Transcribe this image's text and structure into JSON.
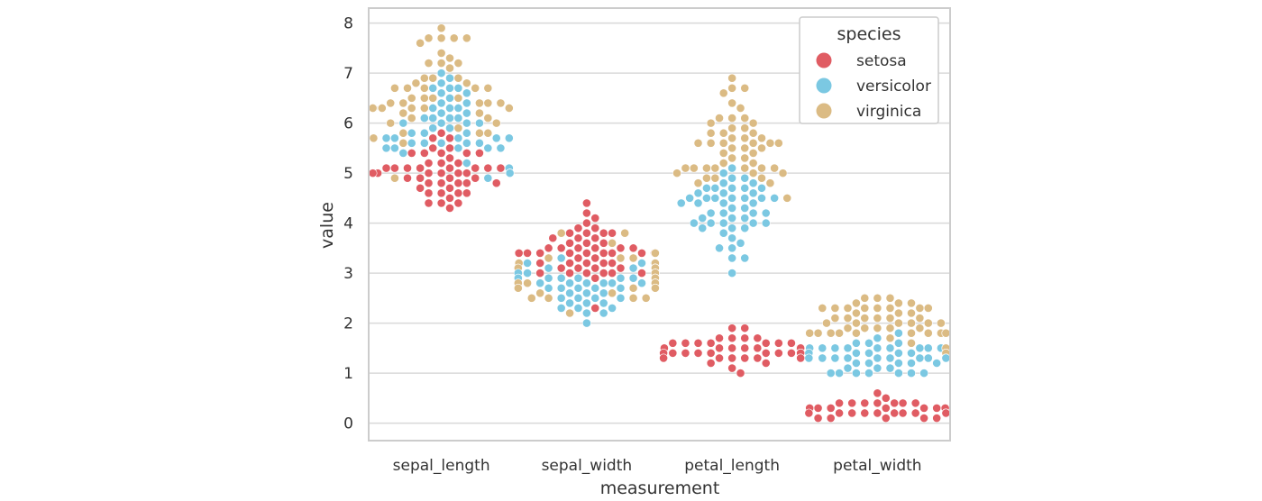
{
  "chart_data": {
    "type": "scatter",
    "subtype": "swarm",
    "xlabel": "measurement",
    "ylabel": "value",
    "categories": [
      "sepal_length",
      "sepal_width",
      "petal_length",
      "petal_width"
    ],
    "ylim": [
      -0.35,
      8.3
    ],
    "yticks": [
      "0",
      "1",
      "2",
      "3",
      "4",
      "5",
      "6",
      "7",
      "8"
    ],
    "grid": true,
    "legend": {
      "title": "species",
      "placement": "top-right",
      "entries": [
        "setosa",
        "versicolor",
        "virginica"
      ]
    },
    "colors": {
      "setosa": "#e05c63",
      "versicolor": "#7bc8e2",
      "virginica": "#dbbb84"
    },
    "grid_color": "#d9d9d9",
    "series": [
      {
        "name": "setosa",
        "values": [
          [
            5.1,
            4.9,
            4.7,
            4.6,
            5.0,
            5.4,
            4.6,
            5.0,
            4.4,
            4.9,
            5.4,
            4.8,
            4.8,
            4.3,
            5.8,
            5.7,
            5.4,
            5.1,
            5.7,
            5.1,
            5.4,
            5.1,
            4.6,
            5.1,
            4.8,
            5.0,
            5.0,
            5.2,
            5.2,
            4.7,
            4.8,
            5.4,
            5.2,
            5.5,
            4.9,
            5.0,
            5.5,
            4.9,
            4.4,
            5.1,
            5.0,
            4.5,
            4.4,
            5.0,
            5.1,
            4.8,
            5.1,
            4.6,
            5.3,
            5.0
          ],
          [
            3.5,
            3.0,
            3.2,
            3.1,
            3.6,
            3.9,
            3.4,
            3.4,
            2.9,
            3.1,
            3.7,
            3.4,
            3.0,
            3.0,
            4.0,
            4.4,
            3.9,
            3.5,
            3.8,
            3.8,
            3.4,
            3.7,
            3.6,
            3.3,
            3.4,
            3.0,
            3.4,
            3.5,
            3.4,
            3.2,
            3.1,
            3.4,
            4.1,
            4.2,
            3.1,
            3.2,
            3.5,
            3.6,
            3.0,
            3.4,
            3.5,
            2.3,
            3.2,
            3.5,
            3.8,
            3.0,
            3.8,
            3.2,
            3.7,
            3.3
          ],
          [
            1.4,
            1.4,
            1.3,
            1.5,
            1.4,
            1.7,
            1.4,
            1.5,
            1.4,
            1.5,
            1.5,
            1.6,
            1.4,
            1.1,
            1.2,
            1.5,
            1.3,
            1.4,
            1.7,
            1.5,
            1.7,
            1.5,
            1.0,
            1.7,
            1.9,
            1.6,
            1.6,
            1.5,
            1.4,
            1.6,
            1.6,
            1.5,
            1.5,
            1.4,
            1.5,
            1.2,
            1.3,
            1.4,
            1.3,
            1.5,
            1.3,
            1.3,
            1.3,
            1.6,
            1.9,
            1.4,
            1.6,
            1.4,
            1.5,
            1.4
          ],
          [
            0.2,
            0.2,
            0.2,
            0.2,
            0.2,
            0.4,
            0.3,
            0.2,
            0.2,
            0.1,
            0.2,
            0.2,
            0.1,
            0.1,
            0.2,
            0.4,
            0.4,
            0.3,
            0.3,
            0.3,
            0.2,
            0.4,
            0.2,
            0.5,
            0.2,
            0.2,
            0.4,
            0.2,
            0.2,
            0.2,
            0.2,
            0.4,
            0.1,
            0.2,
            0.2,
            0.2,
            0.2,
            0.1,
            0.2,
            0.2,
            0.3,
            0.3,
            0.2,
            0.6,
            0.4,
            0.3,
            0.2,
            0.2,
            0.2,
            0.2
          ]
        ]
      },
      {
        "name": "versicolor",
        "values": [
          [
            7.0,
            6.4,
            6.9,
            5.5,
            6.5,
            5.7,
            6.3,
            4.9,
            6.6,
            5.2,
            5.0,
            5.9,
            6.0,
            6.1,
            5.6,
            6.7,
            5.6,
            5.8,
            6.2,
            5.6,
            5.9,
            6.1,
            6.3,
            6.1,
            6.4,
            6.6,
            6.8,
            6.7,
            6.0,
            5.7,
            5.5,
            5.5,
            5.8,
            6.0,
            5.4,
            6.0,
            6.7,
            6.3,
            5.6,
            5.5,
            5.5,
            6.1,
            5.8,
            5.0,
            5.6,
            5.7,
            5.7,
            6.2,
            5.1,
            5.7
          ],
          [
            3.2,
            3.2,
            3.1,
            2.3,
            2.8,
            2.8,
            3.3,
            2.4,
            2.9,
            2.7,
            2.0,
            3.0,
            2.2,
            2.9,
            2.9,
            3.1,
            3.0,
            2.7,
            2.2,
            2.5,
            3.2,
            2.8,
            2.5,
            2.8,
            2.9,
            3.0,
            2.8,
            3.0,
            2.9,
            2.6,
            2.4,
            2.4,
            2.7,
            2.7,
            3.0,
            3.4,
            3.1,
            2.3,
            3.0,
            2.5,
            2.6,
            3.0,
            2.6,
            2.3,
            2.7,
            3.0,
            2.9,
            2.9,
            2.5,
            2.8
          ],
          [
            4.7,
            4.5,
            4.9,
            4.0,
            4.6,
            4.5,
            4.7,
            3.3,
            4.6,
            3.9,
            3.5,
            4.2,
            4.0,
            4.7,
            3.6,
            4.4,
            4.5,
            4.1,
            4.5,
            3.9,
            4.8,
            4.0,
            4.9,
            4.7,
            4.3,
            4.4,
            4.8,
            5.0,
            4.5,
            3.5,
            3.8,
            3.7,
            3.9,
            5.1,
            4.5,
            4.5,
            4.7,
            4.4,
            4.1,
            4.0,
            4.4,
            4.6,
            4.0,
            3.3,
            4.2,
            4.2,
            4.2,
            4.3,
            3.0,
            4.1
          ],
          [
            1.4,
            1.5,
            1.5,
            1.3,
            1.5,
            1.3,
            1.6,
            1.0,
            1.3,
            1.4,
            1.0,
            1.5,
            1.0,
            1.4,
            1.3,
            1.4,
            1.5,
            1.0,
            1.5,
            1.1,
            1.8,
            1.3,
            1.5,
            1.2,
            1.3,
            1.4,
            1.4,
            1.7,
            1.5,
            1.0,
            1.1,
            1.0,
            1.2,
            1.6,
            1.5,
            1.6,
            1.5,
            1.3,
            1.3,
            1.3,
            1.2,
            1.4,
            1.2,
            1.0,
            1.3,
            1.2,
            1.3,
            1.3,
            1.1,
            1.3
          ]
        ]
      },
      {
        "name": "virginica",
        "values": [
          [
            6.3,
            5.8,
            7.1,
            6.3,
            6.5,
            7.6,
            4.9,
            7.3,
            6.7,
            7.2,
            6.5,
            6.4,
            6.8,
            5.7,
            5.8,
            6.4,
            6.5,
            7.7,
            7.7,
            6.0,
            6.9,
            5.6,
            7.7,
            6.3,
            6.7,
            7.2,
            6.2,
            6.1,
            6.4,
            7.2,
            7.4,
            7.9,
            6.4,
            6.3,
            6.1,
            7.7,
            6.3,
            6.4,
            6.0,
            6.9,
            6.7,
            6.9,
            5.8,
            6.8,
            6.7,
            6.7,
            6.3,
            6.5,
            6.2,
            5.9
          ],
          [
            3.3,
            2.7,
            3.0,
            2.9,
            3.0,
            3.0,
            2.5,
            2.9,
            2.5,
            3.6,
            3.2,
            2.7,
            3.0,
            2.5,
            2.8,
            3.2,
            3.0,
            3.8,
            2.6,
            2.2,
            3.2,
            2.8,
            2.8,
            2.7,
            3.3,
            3.2,
            2.8,
            3.0,
            2.8,
            3.0,
            2.8,
            3.8,
            2.8,
            2.8,
            2.6,
            3.0,
            3.4,
            3.1,
            3.0,
            3.1,
            3.1,
            3.1,
            2.7,
            3.2,
            3.3,
            3.0,
            2.5,
            3.0,
            3.4,
            3.0
          ],
          [
            6.0,
            5.1,
            5.9,
            5.6,
            5.8,
            6.6,
            4.5,
            6.3,
            5.8,
            6.1,
            5.1,
            5.3,
            5.5,
            5.0,
            5.1,
            5.3,
            5.5,
            6.7,
            6.9,
            5.0,
            5.7,
            4.9,
            6.7,
            4.9,
            5.7,
            6.0,
            4.8,
            4.9,
            5.6,
            5.8,
            6.1,
            6.4,
            5.6,
            5.1,
            5.6,
            6.1,
            5.6,
            5.5,
            4.8,
            5.4,
            5.6,
            5.1,
            5.1,
            5.9,
            5.7,
            5.2,
            5.0,
            5.2,
            5.4,
            5.1
          ],
          [
            2.5,
            1.9,
            2.1,
            1.8,
            2.2,
            2.1,
            1.7,
            1.8,
            1.8,
            2.5,
            2.0,
            1.9,
            2.1,
            2.0,
            2.4,
            2.3,
            1.8,
            2.2,
            2.3,
            1.5,
            2.3,
            2.0,
            2.0,
            1.8,
            2.1,
            1.8,
            1.8,
            1.8,
            2.1,
            1.6,
            1.9,
            2.0,
            2.2,
            1.5,
            1.4,
            2.3,
            2.4,
            1.8,
            1.8,
            2.1,
            2.4,
            2.3,
            1.9,
            2.3,
            2.5,
            2.3,
            1.9,
            2.0,
            2.3,
            1.8
          ]
        ]
      }
    ]
  }
}
